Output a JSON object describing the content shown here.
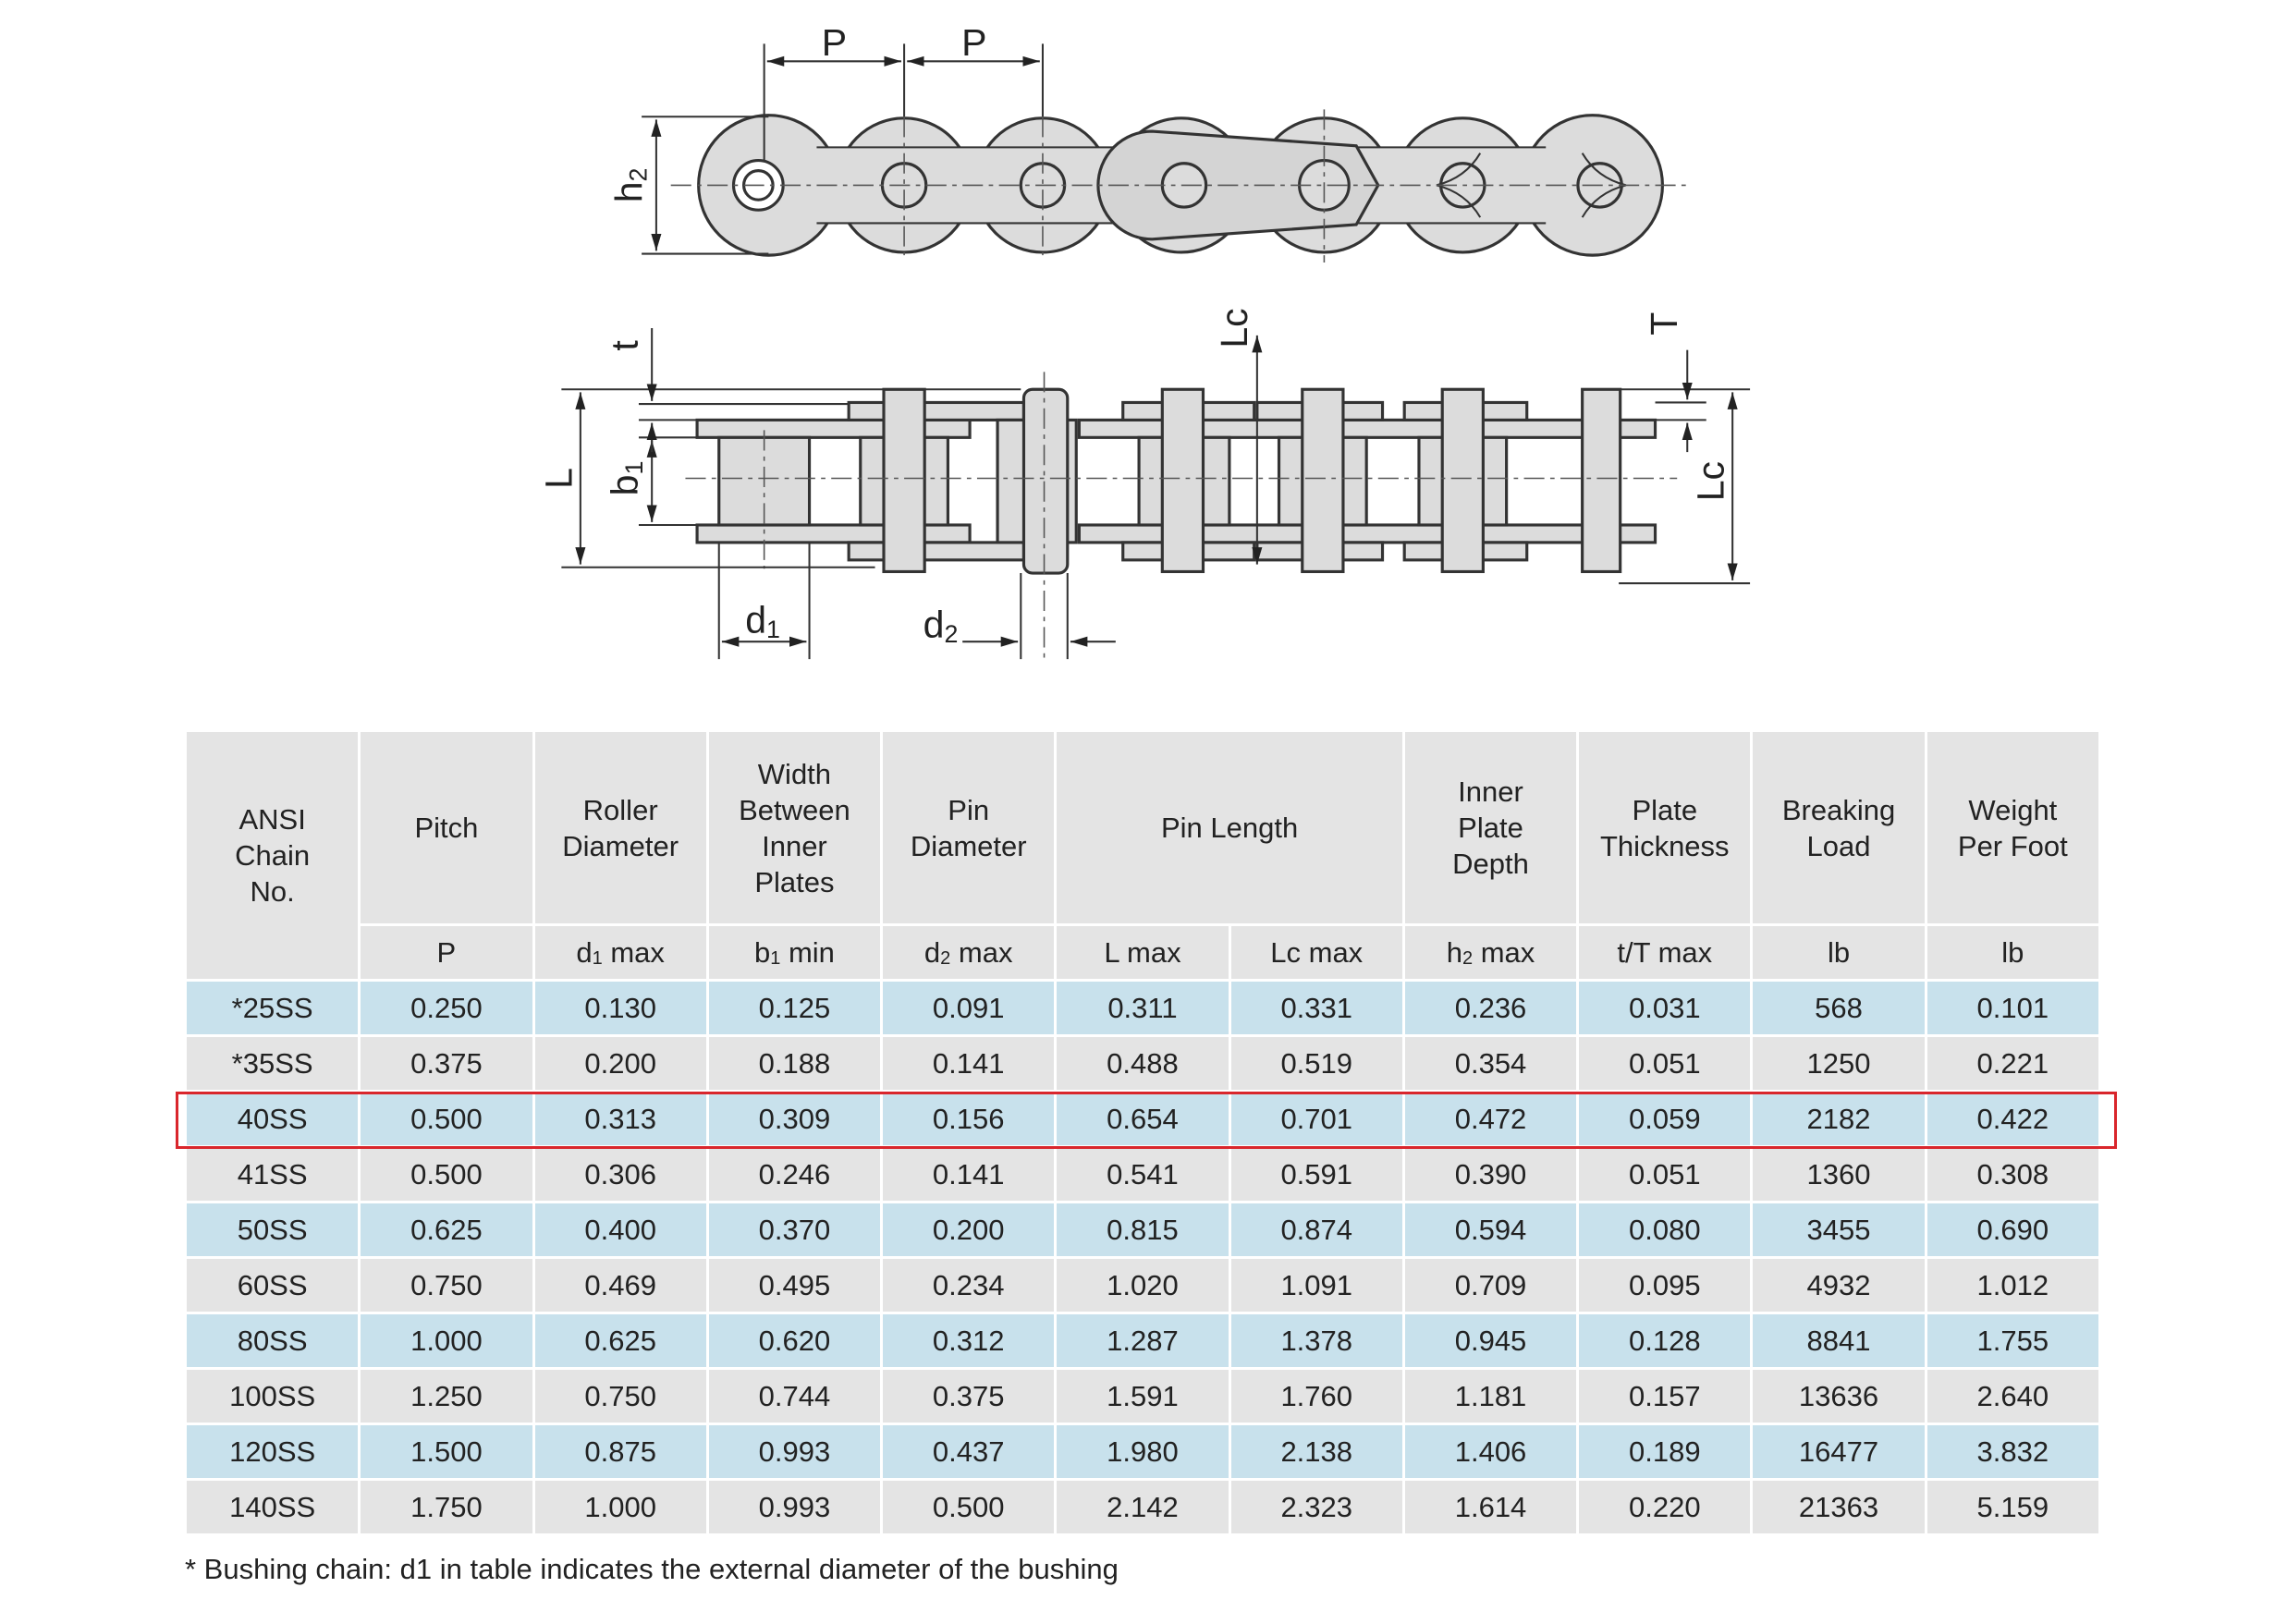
{
  "diagram": {
    "labels": [
      {
        "text": "P"
      },
      {
        "text": "P"
      },
      {
        "text": "h",
        "sub": "2"
      },
      {
        "text": "t"
      },
      {
        "text": "Lc"
      },
      {
        "text": "T"
      },
      {
        "text": "L"
      },
      {
        "text": "b",
        "sub": "1"
      },
      {
        "text": "Lc"
      },
      {
        "text": "d",
        "sub": "1"
      },
      {
        "text": "d",
        "sub": "2"
      }
    ]
  },
  "table": {
    "header": [
      [
        "ANSI",
        "Chain",
        "No."
      ],
      [
        "Pitch"
      ],
      [
        "Roller",
        "Diameter"
      ],
      [
        "Width",
        "Between",
        "Inner",
        "Plates"
      ],
      [
        "Pin",
        "Diameter"
      ],
      [
        "Pin Length"
      ],
      [
        "Inner",
        "Plate",
        "Depth"
      ],
      [
        "Plate",
        "Thickness"
      ],
      [
        "Breaking",
        "Load"
      ],
      [
        "Weight",
        "Per Foot"
      ]
    ],
    "units": [
      {
        "text": "P"
      },
      {
        "text": "d",
        "sub": "1",
        "after": " max"
      },
      {
        "text": "b",
        "sub": "1",
        "after": " min"
      },
      {
        "text": "d",
        "sub": "2",
        "after": " max"
      },
      {
        "text": "L max"
      },
      {
        "text": "Lc max"
      },
      {
        "text": "h",
        "sub": "2",
        "after": " max"
      },
      {
        "text": "t/T max"
      },
      {
        "text": "lb"
      },
      {
        "text": "lb"
      }
    ],
    "rows": [
      [
        "*25SS",
        "0.250",
        "0.130",
        "0.125",
        "0.091",
        "0.311",
        "0.331",
        "0.236",
        "0.031",
        "568",
        "0.101"
      ],
      [
        "*35SS",
        "0.375",
        "0.200",
        "0.188",
        "0.141",
        "0.488",
        "0.519",
        "0.354",
        "0.051",
        "1250",
        "0.221"
      ],
      [
        "40SS",
        "0.500",
        "0.313",
        "0.309",
        "0.156",
        "0.654",
        "0.701",
        "0.472",
        "0.059",
        "2182",
        "0.422"
      ],
      [
        "41SS",
        "0.500",
        "0.306",
        "0.246",
        "0.141",
        "0.541",
        "0.591",
        "0.390",
        "0.051",
        "1360",
        "0.308"
      ],
      [
        "50SS",
        "0.625",
        "0.400",
        "0.370",
        "0.200",
        "0.815",
        "0.874",
        "0.594",
        "0.080",
        "3455",
        "0.690"
      ],
      [
        "60SS",
        "0.750",
        "0.469",
        "0.495",
        "0.234",
        "1.020",
        "1.091",
        "0.709",
        "0.095",
        "4932",
        "1.012"
      ],
      [
        "80SS",
        "1.000",
        "0.625",
        "0.620",
        "0.312",
        "1.287",
        "1.378",
        "0.945",
        "0.128",
        "8841",
        "1.755"
      ],
      [
        "100SS",
        "1.250",
        "0.750",
        "0.744",
        "0.375",
        "1.591",
        "1.760",
        "1.181",
        "0.157",
        "13636",
        "2.640"
      ],
      [
        "120SS",
        "1.500",
        "0.875",
        "0.993",
        "0.437",
        "1.980",
        "2.138",
        "1.406",
        "0.189",
        "16477",
        "3.832"
      ],
      [
        "140SS",
        "1.750",
        "1.000",
        "0.993",
        "0.500",
        "2.142",
        "2.323",
        "1.614",
        "0.220",
        "21363",
        "5.159"
      ]
    ]
  },
  "footnote": "* Bushing chain: d1 in table indicates the external diameter of the bushing"
}
